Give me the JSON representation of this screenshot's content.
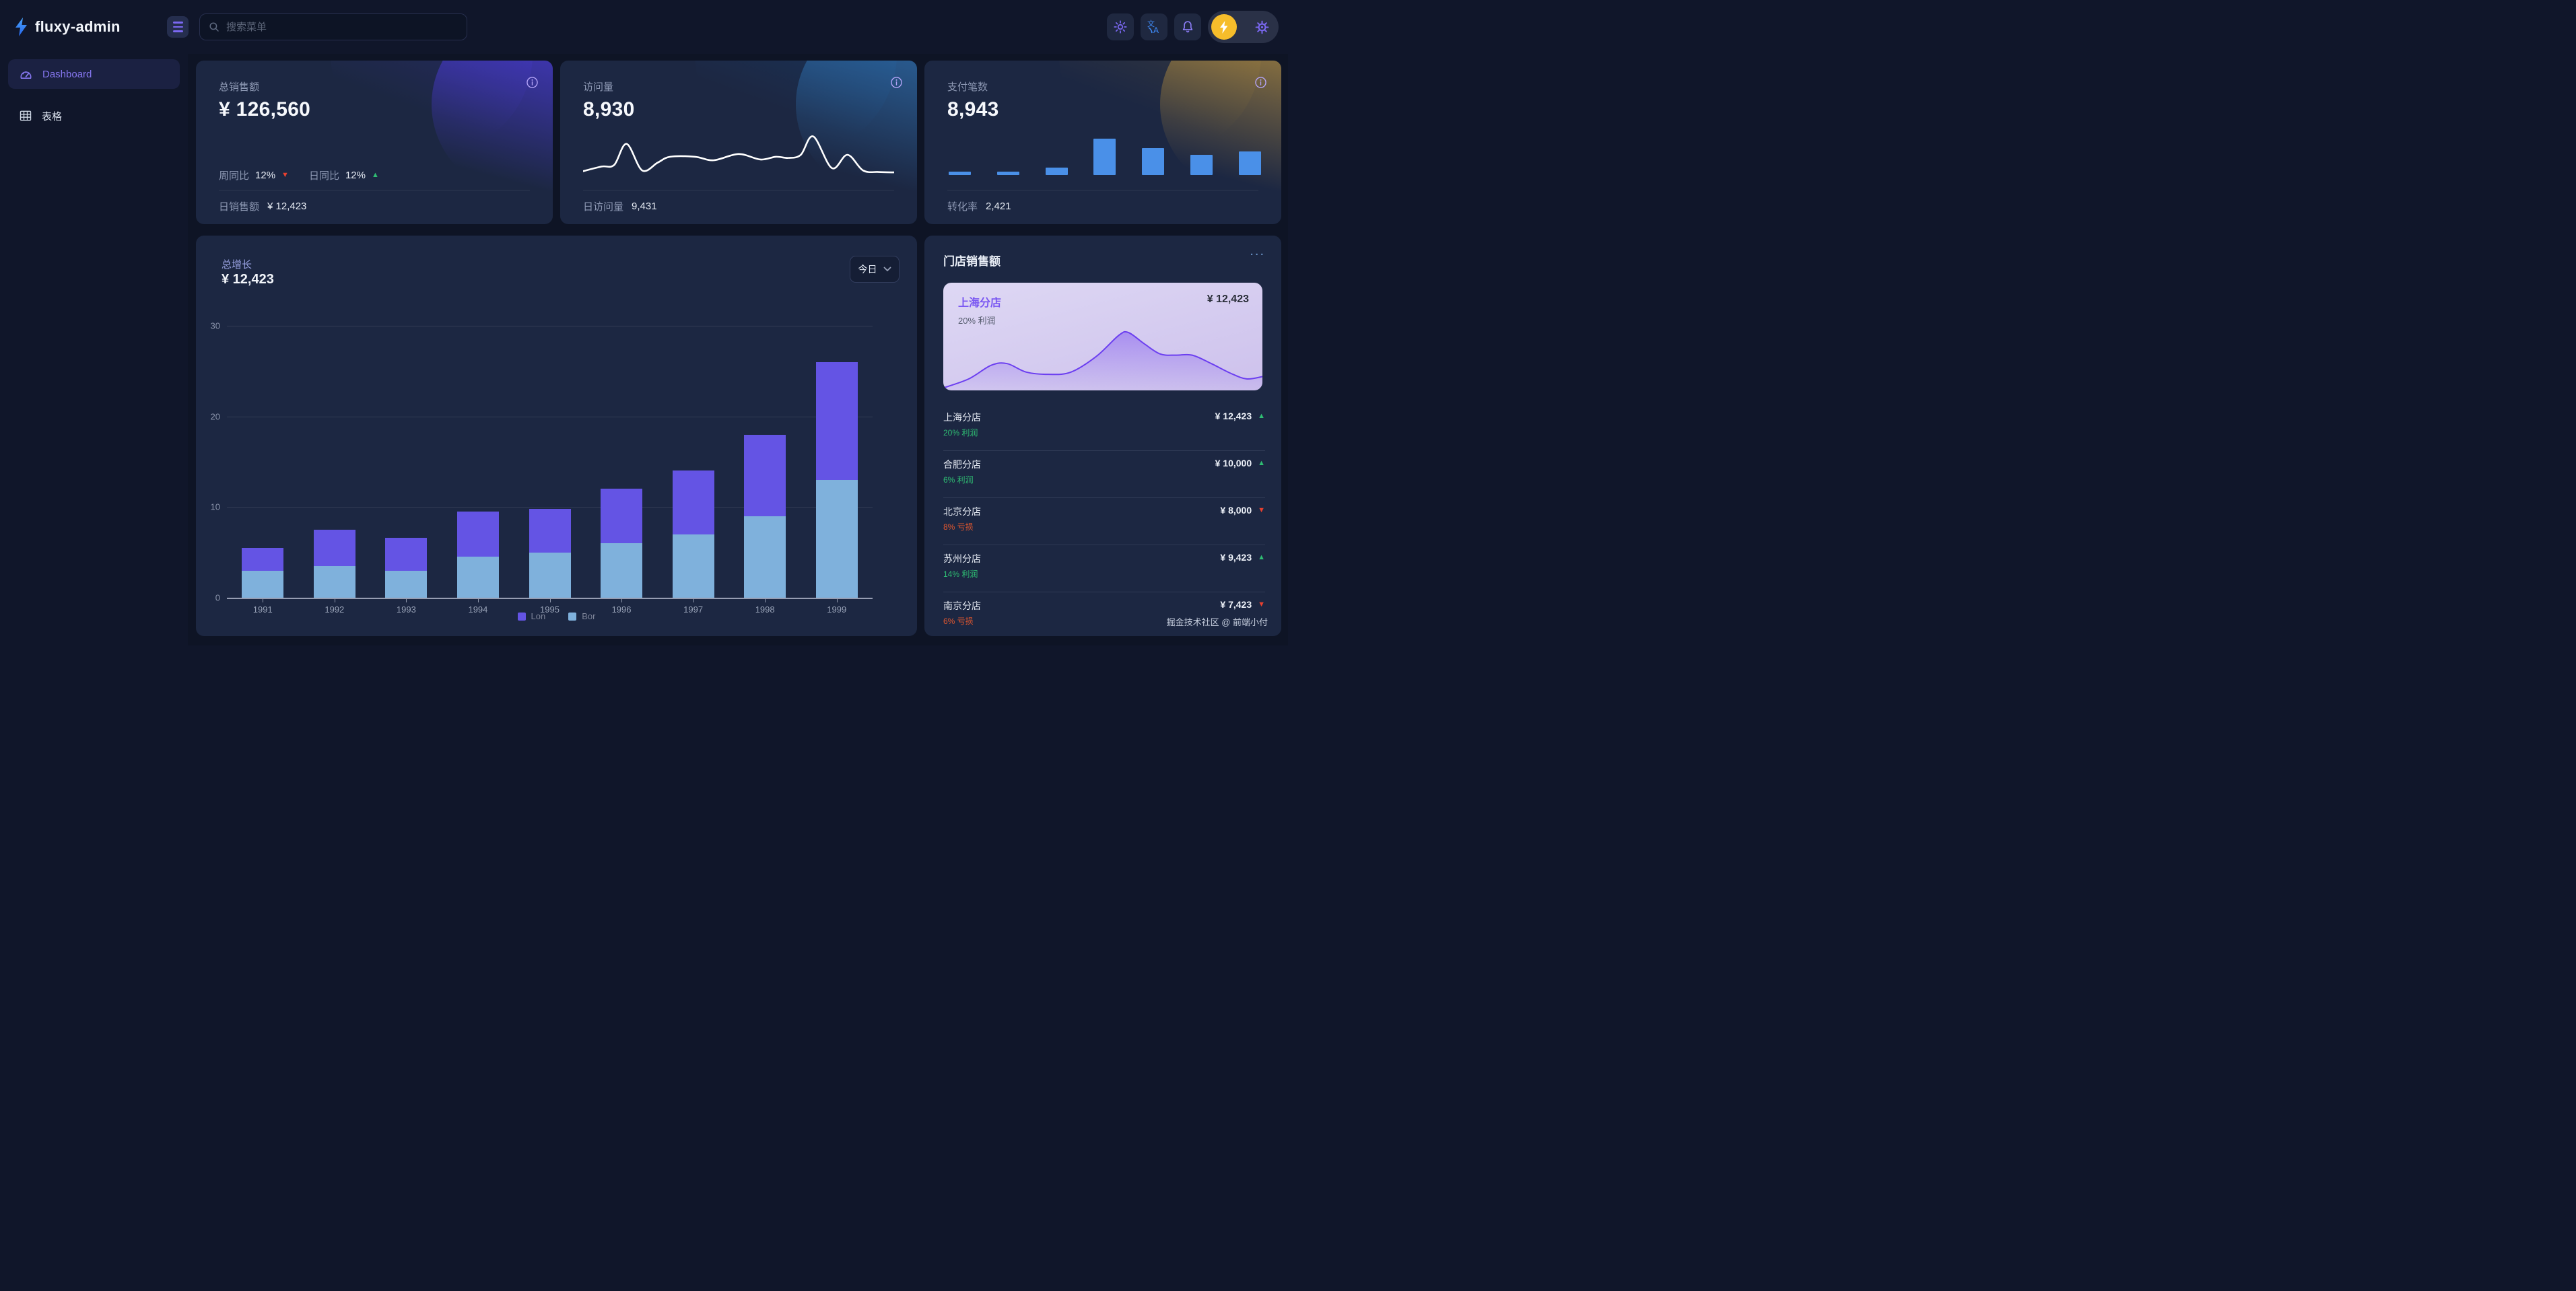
{
  "header": {
    "logo_text": "fluxy-admin",
    "search_placeholder": "搜索菜单"
  },
  "sidebar": {
    "items": [
      {
        "label": "Dashboard",
        "active": true
      },
      {
        "label": "表格",
        "active": false
      }
    ]
  },
  "stat_cards": [
    {
      "title": "总销售额",
      "value": "¥ 126,560",
      "meta": [
        {
          "label": "周同比",
          "value": "12%",
          "trend": "down"
        },
        {
          "label": "日同比",
          "value": "12%",
          "trend": "up"
        }
      ],
      "footer_label": "日销售额",
      "footer_value": "¥ 12,423"
    },
    {
      "title": "访问量",
      "value": "8,930",
      "footer_label": "日访问量",
      "footer_value": "9,431"
    },
    {
      "title": "支付笔数",
      "value": "8,943",
      "footer_label": "转化率",
      "footer_value": "2,421"
    }
  ],
  "growth": {
    "title": "总增长",
    "value": "¥ 12,423",
    "range_label": "今日"
  },
  "stores": {
    "title": "门店销售额",
    "more_label": "...",
    "highlight": {
      "name": "上海分店",
      "value": "¥ 12,423",
      "profit": "20% 利润"
    },
    "rows": [
      {
        "name": "上海分店",
        "value": "¥ 12,423",
        "trend": "up",
        "pct": "20% 利润",
        "pct_type": "profit"
      },
      {
        "name": "合肥分店",
        "value": "¥ 10,000",
        "trend": "up",
        "pct": "6% 利润",
        "pct_type": "profit"
      },
      {
        "name": "北京分店",
        "value": "¥ 8,000",
        "trend": "down",
        "pct": "8% 亏损",
        "pct_type": "loss"
      },
      {
        "name": "苏州分店",
        "value": "¥ 9,423",
        "trend": "up",
        "pct": "14% 利润",
        "pct_type": "profit"
      },
      {
        "name": "南京分店",
        "value": "¥ 7,423",
        "trend": "down",
        "pct": "6% 亏损",
        "pct_type": "loss"
      }
    ]
  },
  "footer_credit": "掘金技术社区 @ 前端小付",
  "colors": {
    "accent_purple": "#7b68f2",
    "accent_blue": "#3f8cfa",
    "accent_yellow": "#f6bd2b",
    "up_green": "#2fbe73",
    "down_red": "#e8402f",
    "card_bg": "#1c2742",
    "content_bg": "#0e1425"
  },
  "chart_data": [
    {
      "id": "growth-bar",
      "type": "bar",
      "stacked": true,
      "title": "总增长",
      "categories": [
        "1991",
        "1992",
        "1993",
        "1994",
        "1995",
        "1996",
        "1997",
        "1998",
        "1999"
      ],
      "series": [
        {
          "name": "Lon",
          "color": "#6454e4",
          "values": [
            2.5,
            4,
            3.6,
            5,
            4.8,
            6,
            7,
            9,
            13
          ]
        },
        {
          "name": "Bor",
          "color": "#7fb1dc",
          "values": [
            3,
            3.5,
            3,
            4.5,
            5,
            6,
            7,
            9,
            13
          ]
        }
      ],
      "stack_bottom_first": [
        "Bor",
        "Lon"
      ],
      "ylim": [
        0,
        30
      ],
      "yticks": [
        0,
        10,
        20,
        30
      ],
      "grid": true,
      "legend_position": "bottom"
    },
    {
      "id": "visits-spark",
      "type": "line",
      "color": "#ffffff",
      "points": [
        [
          0,
          8
        ],
        [
          6,
          20
        ],
        [
          10,
          24
        ],
        [
          14,
          78
        ],
        [
          19,
          10
        ],
        [
          24,
          30
        ],
        [
          28,
          45
        ],
        [
          36,
          45
        ],
        [
          42,
          36
        ],
        [
          50,
          52
        ],
        [
          57,
          38
        ],
        [
          62,
          45
        ],
        [
          66,
          42
        ],
        [
          70,
          50
        ],
        [
          74,
          97
        ],
        [
          80,
          16
        ],
        [
          85,
          50
        ],
        [
          90,
          10
        ],
        [
          95,
          6
        ],
        [
          100,
          5
        ]
      ]
    },
    {
      "id": "payments-bars",
      "type": "bar",
      "color": "#4a90e8",
      "values": [
        1,
        1,
        2,
        10,
        7.5,
        5.5,
        6.5
      ],
      "ylim": [
        0,
        10
      ]
    },
    {
      "id": "store-area",
      "type": "area",
      "line_color": "#6c3ff0",
      "points": [
        [
          0,
          2
        ],
        [
          8,
          18
        ],
        [
          15,
          42
        ],
        [
          20,
          45
        ],
        [
          26,
          30
        ],
        [
          33,
          26
        ],
        [
          40,
          30
        ],
        [
          48,
          58
        ],
        [
          55,
          95
        ],
        [
          58,
          100
        ],
        [
          63,
          80
        ],
        [
          68,
          62
        ],
        [
          73,
          60
        ],
        [
          78,
          60
        ],
        [
          84,
          45
        ],
        [
          90,
          28
        ],
        [
          95,
          18
        ],
        [
          100,
          22
        ]
      ]
    }
  ]
}
